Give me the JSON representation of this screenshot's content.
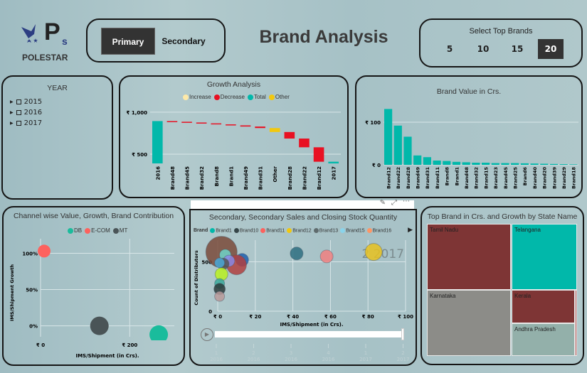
{
  "header": {
    "logo_text": "POLESTAR",
    "logo_letter": "P",
    "logo_sub": "s",
    "toggle": [
      "Primary",
      "Secondary"
    ],
    "active_toggle": "Primary",
    "title": "Brand Analysis",
    "top_brands_label": "Select Top Brands",
    "top_brands_options": [
      "5",
      "10",
      "15",
      "20"
    ],
    "top_brands_selected": "20"
  },
  "year_slicer": {
    "title": "YEAR",
    "items": [
      "2015",
      "2016",
      "2017"
    ]
  },
  "colors": {
    "teal": "#01b8aa",
    "red": "#e81123",
    "yellow": "#f2c80f",
    "increase": "#fde9a8",
    "dark": "#333333"
  },
  "chart_data": [
    {
      "id": "growth",
      "type": "waterfall",
      "title": "Growth Analysis",
      "legend": [
        "Increase",
        "Decrease",
        "Total",
        "Other"
      ],
      "legend_position": "top",
      "yticks": [
        "₹ 500",
        "₹ 1,000"
      ],
      "ytick_values": [
        500,
        1000
      ],
      "ylim": [
        390,
        1050
      ],
      "categories": [
        "2016",
        "Brand48",
        "Brand45",
        "Brand32",
        "Brand8",
        "Brand1",
        "Brand49",
        "Brand31",
        "Other",
        "Brand28",
        "Brand22",
        "Brand12",
        "2017"
      ],
      "values": [
        894,
        -8,
        -9,
        -10,
        -12,
        -12,
        -14,
        -18,
        -47,
        -78,
        -104,
        -172,
        410
      ],
      "kinds": [
        "Total",
        "Decrease",
        "Decrease",
        "Decrease",
        "Decrease",
        "Decrease",
        "Decrease",
        "Decrease",
        "Other",
        "Decrease",
        "Decrease",
        "Decrease",
        "Total"
      ]
    },
    {
      "id": "brandvalue",
      "type": "bar",
      "title": "Brand Value in Crs.",
      "yticks": [
        "₹ 0",
        "₹ 100"
      ],
      "ytick_values": [
        0,
        100
      ],
      "ylim": [
        0,
        140
      ],
      "categories": [
        "Brand12",
        "Brand22",
        "Brand28",
        "Brand49",
        "Brand31",
        "Brand11",
        "Brand8",
        "Brand1",
        "Brand48",
        "Brand32",
        "Brand15",
        "Brand23",
        "Brand45",
        "Brand25",
        "Brand6",
        "Brand40",
        "Brand20",
        "Brand39",
        "Brand29",
        "Brand18"
      ],
      "values": [
        131,
        92,
        66,
        22,
        18,
        10,
        9,
        7,
        6,
        5,
        5,
        4,
        4,
        4,
        3.5,
        3,
        2.5,
        2,
        1.5,
        1
      ]
    },
    {
      "id": "channel",
      "type": "scatter",
      "title": "Channel wise Value, Growth, Brand Contribution",
      "xlabel": "IMS/Shipment (in Crs).",
      "ylabel": "IMS/Shipment Growth",
      "xticks": [
        "₹ 0",
        "₹ 200"
      ],
      "xtick_values": [
        0,
        200
      ],
      "yticks": [
        "0%",
        "50%",
        "100%"
      ],
      "ytick_values": [
        0,
        50,
        100
      ],
      "xlim": [
        0,
        300
      ],
      "ylim": [
        -15,
        120
      ],
      "series": [
        {
          "name": "DB",
          "x": 265,
          "y": -12,
          "color": "#1abc9c"
        },
        {
          "name": "E-COM",
          "x": 8,
          "y": 103,
          "color": "#fd625e"
        },
        {
          "name": "MT",
          "x": 132,
          "y": 0,
          "color": "#4a5457"
        }
      ]
    },
    {
      "id": "secondary",
      "type": "scatter",
      "title": "Secondary, Secondary Sales and Closing Stock Quantity",
      "legend_title": "Brand",
      "legend": [
        {
          "name": "Brand1",
          "color": "#01b8aa"
        },
        {
          "name": "Brand10",
          "color": "#374649"
        },
        {
          "name": "Brand11",
          "color": "#fd625e"
        },
        {
          "name": "Brand12",
          "color": "#f2c80f"
        },
        {
          "name": "Brand13",
          "color": "#5f6b6d"
        },
        {
          "name": "Brand15",
          "color": "#8ad4eb"
        },
        {
          "name": "Brand16",
          "color": "#fe9666"
        }
      ],
      "xlabel": "IMS/Shipment (in Crs).",
      "ylabel": "Count of Distributors",
      "xticks": [
        "₹ 0",
        "₹ 20",
        "₹ 40",
        "₹ 60",
        "₹ 80",
        "₹ 100"
      ],
      "xtick_values": [
        0,
        20,
        40,
        60,
        80,
        100
      ],
      "yticks": [
        "0",
        "500"
      ],
      "ytick_values": [
        0,
        500
      ],
      "xlim": [
        0,
        100
      ],
      "ylim": [
        0,
        720
      ],
      "frame_label": "2 2017",
      "points": [
        {
          "x": 2,
          "y": 600,
          "r": 22,
          "color": "#7a4a3a"
        },
        {
          "x": 42,
          "y": 585,
          "r": 9,
          "color": "#2e6e80"
        },
        {
          "x": 58,
          "y": 555,
          "r": 9,
          "color": "#f08080"
        },
        {
          "x": 83,
          "y": 600,
          "r": 12,
          "color": "#e8c220"
        },
        {
          "x": 13,
          "y": 520,
          "r": 9,
          "color": "#1f5fae"
        },
        {
          "x": 10,
          "y": 470,
          "r": 14,
          "color": "#b04040"
        },
        {
          "x": 4,
          "y": 570,
          "r": 8,
          "color": "#6fd4c8"
        },
        {
          "x": 6,
          "y": 510,
          "r": 8,
          "color": "#8a8ae8"
        },
        {
          "x": 3,
          "y": 480,
          "r": 8,
          "color": "#555"
        },
        {
          "x": 1,
          "y": 490,
          "r": 7,
          "color": "#4aa8d8"
        },
        {
          "x": 2,
          "y": 375,
          "r": 9,
          "color": "#b8f020"
        },
        {
          "x": 1,
          "y": 280,
          "r": 7,
          "color": "#3aa89a"
        },
        {
          "x": 1,
          "y": 225,
          "r": 8,
          "color": "#2a3a3a"
        },
        {
          "x": 1,
          "y": 150,
          "r": 7,
          "color": "#b89a9a"
        }
      ],
      "play_axis": [
        [
          "1",
          "2016"
        ],
        [
          "2",
          "2016"
        ],
        [
          "3",
          "2016"
        ],
        [
          "4",
          "2016"
        ],
        [
          "1",
          "2017"
        ],
        [
          "2",
          "2017"
        ]
      ]
    },
    {
      "id": "treemap",
      "type": "treemap",
      "title": "Top Brand in Crs. and Growth by State Name",
      "items": [
        {
          "name": "Tamil Nadu",
          "color": "#7e3535"
        },
        {
          "name": "Telangana",
          "color": "#01b8aa"
        },
        {
          "name": "Karnataka",
          "color": "#8c8c88"
        },
        {
          "name": "Kerala",
          "color": "#7e3535"
        },
        {
          "name": "Andhra Pradesh",
          "color": "#93b0aa"
        },
        {
          "name": "",
          "color": "#b04a4a"
        }
      ]
    }
  ]
}
